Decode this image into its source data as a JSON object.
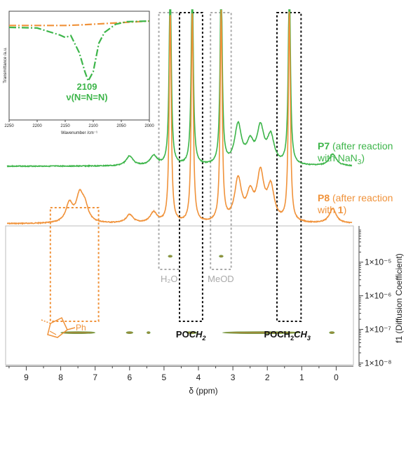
{
  "chart_data": [
    {
      "type": "line",
      "panel": "1H NMR spectra (top) with DOSY map (bottom)",
      "xlabel": "δ (ppm)",
      "xlim": [
        9.6,
        -0.5
      ],
      "x_ticks": [
        "9",
        "8",
        "7",
        "6",
        "5",
        "4",
        "3",
        "2",
        "1",
        "0"
      ],
      "ylabel": "f1 (Diffusion Coefficient)",
      "y_scale": "log",
      "ylim": [
        8e-09,
        9e-05
      ],
      "y_ticks": [
        "1×10⁻⁸",
        "1×10⁻⁷",
        "1×10⁻⁶",
        "1×10⁻⁵"
      ],
      "series": [
        {
          "name": "P7",
          "label_suffix_line1": " (after reaction",
          "label_line2_prefix": "with NaN",
          "label_line2_sub": "3",
          "label_line2_suffix": ")",
          "color": "#3db54a",
          "peaks": [
            {
              "ppm": 4.82,
              "height": 1.0
            },
            {
              "ppm": 4.18,
              "height": 1.0
            },
            {
              "ppm": 3.34,
              "height": 1.0
            },
            {
              "ppm": 1.36,
              "height": 1.0
            },
            {
              "ppm": 2.85,
              "height": 0.2
            },
            {
              "ppm": 2.2,
              "height": 0.18
            },
            {
              "ppm": 1.9,
              "height": 0.14
            },
            {
              "ppm": 2.5,
              "height": 0.1
            },
            {
              "ppm": 5.3,
              "height": 0.05
            },
            {
              "ppm": 6.0,
              "height": 0.05
            },
            {
              "ppm": 0.1,
              "height": 0.06
            }
          ]
        },
        {
          "name": "P8",
          "label_suffix_line1": " (after reaction",
          "label_line2_prefix": "with ",
          "label_line2_bold": "1",
          "label_line2_suffix": ")",
          "color": "#f0923a",
          "peaks": [
            {
              "ppm": 4.82,
              "height": 1.0
            },
            {
              "ppm": 4.18,
              "height": 1.0
            },
            {
              "ppm": 3.34,
              "height": 1.0
            },
            {
              "ppm": 1.36,
              "height": 1.0
            },
            {
              "ppm": 7.75,
              "height": 0.09
            },
            {
              "ppm": 7.45,
              "height": 0.12
            },
            {
              "ppm": 7.3,
              "height": 0.07
            },
            {
              "ppm": 2.85,
              "height": 0.2
            },
            {
              "ppm": 2.2,
              "height": 0.22
            },
            {
              "ppm": 1.9,
              "height": 0.16
            },
            {
              "ppm": 2.5,
              "height": 0.12
            },
            {
              "ppm": 5.3,
              "height": 0.05
            },
            {
              "ppm": 6.0,
              "height": 0.04
            },
            {
              "ppm": 0.1,
              "height": 0.07
            }
          ]
        }
      ],
      "dosy_spots": [
        {
          "ppm_from": 8.0,
          "ppm_to": 7.0,
          "D": 8e-08
        },
        {
          "ppm_from": 4.35,
          "ppm_to": 4.05,
          "D": 8e-08
        },
        {
          "ppm_from": 3.3,
          "ppm_to": 1.05,
          "D": 8e-08
        },
        {
          "ppm_from": 0.2,
          "ppm_to": 0.05,
          "D": 8e-08
        },
        {
          "ppm_from": 6.1,
          "ppm_to": 5.9,
          "D": 8e-08
        },
        {
          "ppm_from": 5.5,
          "ppm_to": 5.4,
          "D": 8e-08
        },
        {
          "ppm_from": 4.88,
          "ppm_to": 4.76,
          "D": 1.5e-05
        },
        {
          "ppm_from": 3.4,
          "ppm_to": 3.28,
          "D": 1.5e-05
        }
      ],
      "annotations": {
        "h2o": {
          "label": "H₂O",
          "ppm_range": [
            5.15,
            4.55
          ],
          "color": "#aaaaaa"
        },
        "meod": {
          "label": "MeOD",
          "ppm_range": [
            3.65,
            3.05
          ],
          "color": "#aaaaaa"
        },
        "poch2": {
          "label_plain": "PO",
          "label_italic": "CH",
          "label_sub": "2",
          "ppm_range": [
            4.55,
            3.88
          ],
          "color": "#111111"
        },
        "poch2ch3": {
          "label_plain": "POCH",
          "label_sub1": "2",
          "label_italic": "CH",
          "label_sub2": "3",
          "ppm_range": [
            1.72,
            1.02
          ],
          "color": "#111111"
        },
        "aromatic": {
          "ppm_range": [
            8.3,
            6.9
          ],
          "color": "#f0923a"
        },
        "triazole_label": "Ph"
      }
    },
    {
      "type": "line",
      "panel": "IR inset",
      "xlabel": "Wavenumber /cm⁻¹",
      "ylabel": "Transmittance /a.u.",
      "xlim": [
        2250,
        2000
      ],
      "x_ticks": [
        "2250",
        "2200",
        "2150",
        "2100",
        "2050",
        "2000"
      ],
      "annotation_value": "2109",
      "annotation_label": "ν(N=N=N)",
      "series": [
        {
          "color": "#f0923a",
          "x": [
            2250,
            2200,
            2150,
            2120,
            2100,
            2080,
            2040,
            2000
          ],
          "y": [
            0.93,
            0.93,
            0.93,
            0.94,
            0.95,
            0.96,
            0.98,
            1.0
          ]
        },
        {
          "color": "#3db54a",
          "x": [
            2250,
            2200,
            2160,
            2150,
            2140,
            2125,
            2115,
            2109,
            2100,
            2090,
            2080,
            2060,
            2040,
            2000
          ],
          "y": [
            0.9,
            0.89,
            0.78,
            0.74,
            0.77,
            0.5,
            0.2,
            0.05,
            0.2,
            0.65,
            0.82,
            0.95,
            0.99,
            1.0
          ]
        }
      ]
    }
  ]
}
